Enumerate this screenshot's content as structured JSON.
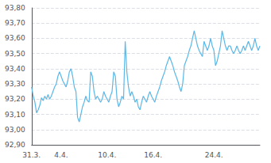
{
  "chart_data": {
    "type": "line",
    "categories": [
      "31.3.",
      null,
      null,
      null,
      null,
      null,
      null,
      null,
      null,
      null,
      null,
      null,
      null,
      null,
      null,
      null,
      null,
      null,
      "4.4.",
      null,
      null,
      null,
      null,
      null,
      null,
      null,
      null,
      null,
      null,
      null,
      null,
      null,
      null,
      null,
      null,
      null,
      null,
      null,
      null,
      null,
      null,
      null,
      null,
      null,
      null,
      null,
      "10.4.",
      null,
      null,
      null,
      null,
      null,
      null,
      null,
      null,
      null,
      null,
      null,
      null,
      null,
      null,
      null,
      null,
      null,
      null,
      null,
      null,
      null,
      null,
      null,
      null,
      null,
      null,
      null,
      "16.4.",
      null,
      null,
      null,
      null,
      null,
      null,
      null,
      null,
      null,
      null,
      null,
      null,
      null,
      null,
      null,
      null,
      null,
      null,
      null,
      null,
      null,
      null,
      null,
      null,
      null,
      null,
      null,
      null,
      null,
      null,
      null,
      null,
      null,
      null,
      null,
      null,
      "24.4.",
      null,
      null,
      null,
      null,
      null,
      null,
      null,
      null,
      null,
      null,
      null,
      null,
      null,
      null,
      null,
      null,
      null,
      null,
      null,
      null,
      null,
      null,
      null,
      null,
      null,
      null,
      null,
      null
    ],
    "values": [
      93.28,
      93.22,
      93.18,
      93.11,
      93.13,
      93.16,
      93.21,
      93.19,
      93.22,
      93.2,
      93.23,
      93.2,
      93.22,
      93.25,
      93.28,
      93.3,
      93.35,
      93.38,
      93.35,
      93.32,
      93.3,
      93.28,
      93.32,
      93.38,
      93.4,
      93.35,
      93.28,
      93.25,
      93.08,
      93.05,
      93.1,
      93.15,
      93.18,
      93.22,
      93.19,
      93.18,
      93.38,
      93.35,
      93.25,
      93.2,
      93.22,
      93.2,
      93.18,
      93.2,
      93.25,
      93.22,
      93.2,
      93.18,
      93.22,
      93.25,
      93.38,
      93.35,
      93.2,
      93.15,
      93.18,
      93.22,
      93.2,
      93.58,
      93.38,
      93.28,
      93.22,
      93.25,
      93.22,
      93.18,
      93.2,
      93.15,
      93.13,
      93.18,
      93.22,
      93.2,
      93.18,
      93.22,
      93.25,
      93.22,
      93.2,
      93.18,
      93.22,
      93.25,
      93.28,
      93.32,
      93.35,
      93.38,
      93.42,
      93.45,
      93.48,
      93.45,
      93.42,
      93.38,
      93.35,
      93.32,
      93.28,
      93.25,
      93.3,
      93.42,
      93.45,
      93.48,
      93.52,
      93.55,
      93.6,
      93.65,
      93.6,
      93.55,
      93.52,
      93.5,
      93.48,
      93.58,
      93.55,
      93.52,
      93.55,
      93.6,
      93.55,
      93.52,
      93.42,
      93.45,
      93.5,
      93.55,
      93.65,
      93.6,
      93.55,
      93.52,
      93.55,
      93.55,
      93.52,
      93.5,
      93.52,
      93.55,
      93.52,
      93.5,
      93.52,
      93.55,
      93.52,
      93.55,
      93.58,
      93.55,
      93.52,
      93.55,
      93.6,
      93.55,
      93.52,
      93.55
    ],
    "color": "#5bb8e8",
    "ylim": [
      92.9,
      93.8
    ],
    "yticks": [
      {
        "value": 92.9,
        "label": "92,90"
      },
      {
        "value": 93.0,
        "label": "93,00"
      },
      {
        "value": 93.1,
        "label": "93,10"
      },
      {
        "value": 93.2,
        "label": "93,20"
      },
      {
        "value": 93.3,
        "label": "93,30"
      },
      {
        "value": 93.4,
        "label": "93,40"
      },
      {
        "value": 93.5,
        "label": "93,50"
      },
      {
        "value": 93.6,
        "label": "93,60"
      },
      {
        "value": 93.7,
        "label": "93,70"
      },
      {
        "value": 93.8,
        "label": "93,80"
      }
    ],
    "grid": true
  }
}
